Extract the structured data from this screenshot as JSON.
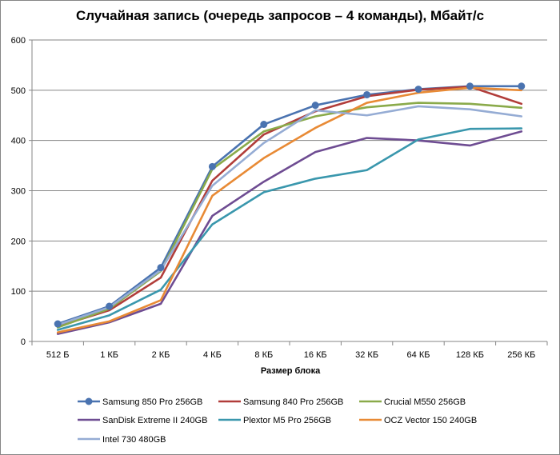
{
  "chart_data": {
    "type": "line",
    "title": "Случайная запись (очередь запросов – 4 команды), Мбайт/с",
    "xlabel": "Размер блока",
    "ylabel": "",
    "categories": [
      "512 Б",
      "1 КБ",
      "2 КБ",
      "4 КБ",
      "8 КБ",
      "16 КБ",
      "32 КБ",
      "64 КБ",
      "128 КБ",
      "256 КБ"
    ],
    "ylim": [
      0,
      600
    ],
    "yticks": [
      0,
      100,
      200,
      300,
      400,
      500,
      600
    ],
    "grid": true,
    "legend_position": "bottom",
    "series": [
      {
        "name": "Samsung 850 Pro 256GB",
        "color": "#4a73b0",
        "marker": "circle",
        "values": [
          35,
          70,
          147,
          348,
          432,
          470,
          491,
          502,
          508,
          508
        ]
      },
      {
        "name": "Samsung 840 Pro 256GB",
        "color": "#b13d3a",
        "marker": "none",
        "values": [
          30,
          62,
          127,
          320,
          412,
          458,
          488,
          501,
          507,
          473
        ]
      },
      {
        "name": "Crucial M550 256GB",
        "color": "#8aaa4a",
        "marker": "none",
        "values": [
          28,
          65,
          140,
          343,
          418,
          448,
          466,
          475,
          473,
          465
        ]
      },
      {
        "name": "SanDisk Extreme II 240GB",
        "color": "#6e4c92",
        "marker": "none",
        "values": [
          15,
          38,
          75,
          250,
          318,
          377,
          405,
          400,
          390,
          418
        ]
      },
      {
        "name": "Plextor M5 Pro 256GB",
        "color": "#3a97ad",
        "marker": "none",
        "values": [
          23,
          52,
          103,
          233,
          297,
          324,
          341,
          402,
          423,
          424
        ]
      },
      {
        "name": "OCZ Vector 150 240GB",
        "color": "#e88a35",
        "marker": "none",
        "values": [
          18,
          40,
          82,
          290,
          365,
          425,
          475,
          495,
          505,
          500
        ]
      },
      {
        "name": "Intel 730 480GB",
        "color": "#95acd4",
        "marker": "none",
        "values": [
          33,
          68,
          142,
          310,
          395,
          460,
          450,
          468,
          462,
          448
        ]
      }
    ]
  }
}
